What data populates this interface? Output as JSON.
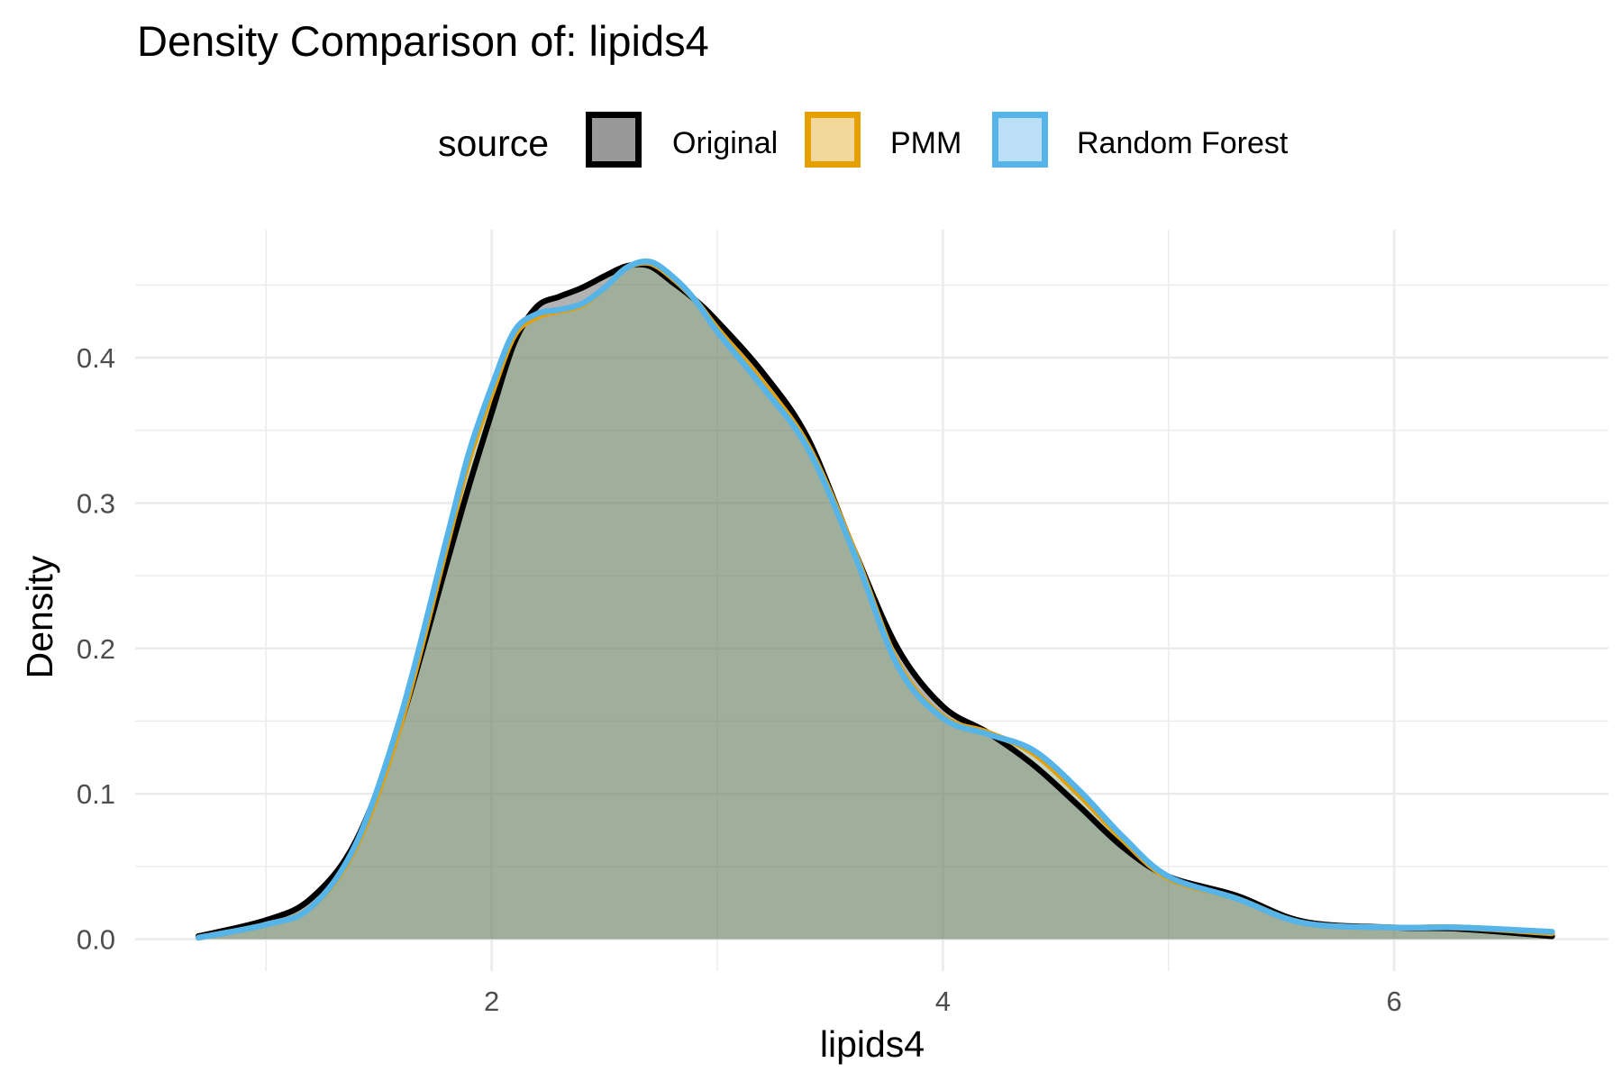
{
  "colors": {
    "original": "#000000",
    "original_fill": "#999999",
    "pmm": "#E69F00",
    "pmm_fill": "#F2D89B",
    "random_forest": "#56B4E9",
    "random_forest_fill": "#BBDFF5",
    "grid": "#EBEBEB",
    "tick_text": "#4D4D4D"
  },
  "legend": {
    "title": "source",
    "items": [
      {
        "key": "original",
        "label": "Original"
      },
      {
        "key": "pmm",
        "label": "PMM"
      },
      {
        "key": "random_forest",
        "label": "Random Forest"
      }
    ]
  },
  "chart_data": {
    "type": "area",
    "title": "Density Comparison of: lipids4",
    "xlabel": "lipids4",
    "ylabel": "Density",
    "xlim": [
      0.42,
      6.95
    ],
    "ylim": [
      -0.022,
      0.488
    ],
    "x_ticks": [
      2,
      4,
      6
    ],
    "x_tick_labels": [
      "2",
      "4",
      "6"
    ],
    "y_ticks": [
      0.0,
      0.1,
      0.2,
      0.3,
      0.4
    ],
    "y_tick_labels": [
      "0.0",
      "0.1",
      "0.2",
      "0.3",
      "0.4"
    ],
    "grid": true,
    "legend_position": "top",
    "series": [
      {
        "name": "Original",
        "key": "original",
        "x": [
          0.7,
          1.0,
          1.2,
          1.4,
          1.6,
          1.8,
          1.9,
          2.0,
          2.1,
          2.2,
          2.3,
          2.4,
          2.5,
          2.6,
          2.7,
          2.8,
          2.9,
          3.0,
          3.2,
          3.4,
          3.6,
          3.8,
          4.0,
          4.2,
          4.4,
          4.6,
          4.8,
          5.0,
          5.3,
          5.6,
          6.0,
          6.3,
          6.7
        ],
        "y": [
          0.002,
          0.013,
          0.028,
          0.068,
          0.15,
          0.258,
          0.312,
          0.362,
          0.41,
          0.435,
          0.442,
          0.448,
          0.456,
          0.463,
          0.463,
          0.452,
          0.44,
          0.425,
          0.39,
          0.345,
          0.27,
          0.2,
          0.16,
          0.142,
          0.12,
          0.092,
          0.063,
          0.043,
          0.03,
          0.012,
          0.008,
          0.007,
          0.002
        ]
      },
      {
        "name": "PMM",
        "key": "pmm",
        "x": [
          0.7,
          1.0,
          1.2,
          1.4,
          1.6,
          1.8,
          1.9,
          2.0,
          2.1,
          2.2,
          2.3,
          2.4,
          2.5,
          2.6,
          2.7,
          2.8,
          2.9,
          3.0,
          3.2,
          3.4,
          3.6,
          3.8,
          4.0,
          4.2,
          4.4,
          4.6,
          4.8,
          5.0,
          5.3,
          5.6,
          6.0,
          6.3,
          6.7
        ],
        "y": [
          0.001,
          0.01,
          0.022,
          0.064,
          0.15,
          0.27,
          0.33,
          0.375,
          0.415,
          0.428,
          0.432,
          0.436,
          0.448,
          0.462,
          0.465,
          0.455,
          0.44,
          0.42,
          0.383,
          0.34,
          0.27,
          0.19,
          0.153,
          0.142,
          0.128,
          0.1,
          0.068,
          0.042,
          0.028,
          0.011,
          0.008,
          0.008,
          0.004
        ]
      },
      {
        "name": "Random Forest",
        "key": "random_forest",
        "x": [
          0.7,
          1.0,
          1.2,
          1.4,
          1.6,
          1.8,
          1.9,
          2.0,
          2.1,
          2.2,
          2.3,
          2.4,
          2.5,
          2.6,
          2.7,
          2.8,
          2.9,
          3.0,
          3.2,
          3.4,
          3.6,
          3.8,
          4.0,
          4.2,
          4.4,
          4.6,
          4.8,
          5.0,
          5.3,
          5.6,
          6.0,
          6.3,
          6.7
        ],
        "y": [
          0.001,
          0.01,
          0.022,
          0.066,
          0.155,
          0.275,
          0.335,
          0.38,
          0.418,
          0.43,
          0.433,
          0.437,
          0.448,
          0.462,
          0.466,
          0.456,
          0.44,
          0.418,
          0.38,
          0.338,
          0.268,
          0.188,
          0.152,
          0.141,
          0.13,
          0.103,
          0.07,
          0.043,
          0.028,
          0.011,
          0.008,
          0.008,
          0.005
        ]
      }
    ]
  }
}
